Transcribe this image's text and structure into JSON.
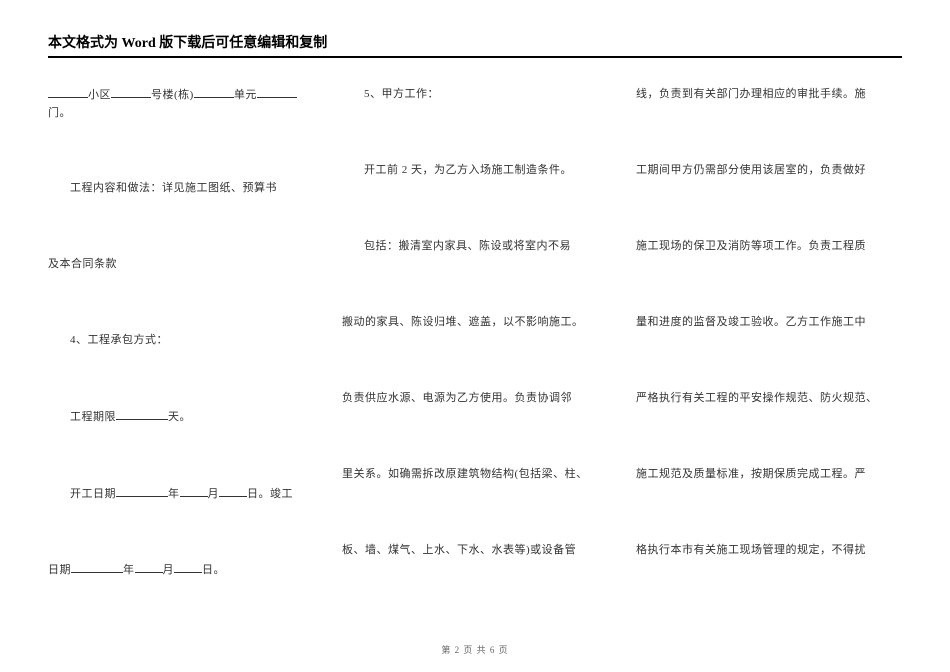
{
  "header_title": "本文格式为 Word 版下载后可任意编辑和复制",
  "col1": {
    "line1_prefix": "",
    "line1_a": "小区",
    "line1_b": "号楼(栋)",
    "line1_c": "单元",
    "line1_d": "门。",
    "line2": "工程内容和做法：详见施工图纸、预算书",
    "line3": "及本合同条款",
    "line4": "4、工程承包方式：",
    "line5_a": "工程期限",
    "line5_b": "天。",
    "line6_a": "开工日期",
    "line6_b": "年",
    "line6_c": "月",
    "line6_d": "日。竣工",
    "line7_a": "日期",
    "line7_b": "年",
    "line7_c": "月",
    "line7_d": "日。"
  },
  "col2": {
    "line1": "5、甲方工作：",
    "line2": "开工前 2 天，为乙方入场施工制造条件。",
    "line3": "包括：搬清室内家具、陈设或将室内不易",
    "line4": "搬动的家具、陈设归堆、遮盖，以不影响施工。",
    "line5": "负责供应水源、电源为乙方使用。负责协调邻",
    "line6": "里关系。如确需拆改原建筑物结构(包括梁、柱、",
    "line7": "板、墙、煤气、上水、下水、水表等)或设备管"
  },
  "col3": {
    "line1": "线，负责到有关部门办理相应的审批手续。施",
    "line2": "工期间甲方仍需部分使用该居室的，负责做好",
    "line3": "施工现场的保卫及消防等项工作。负责工程质",
    "line4": "量和进度的监督及竣工验收。乙方工作施工中",
    "line5": "严格执行有关工程的平安操作规范、防火规范、",
    "line6": "施工规范及质量标准，按期保质完成工程。严",
    "line7": "格执行本市有关施工现场管理的规定，不得扰"
  },
  "footer": "第 2 页 共 6 页"
}
